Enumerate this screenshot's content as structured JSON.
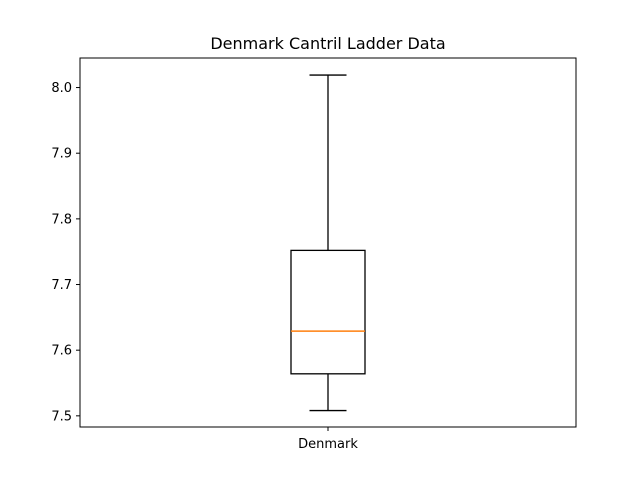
{
  "chart_data": {
    "type": "box",
    "title": "Denmark Cantril Ladder Data",
    "xlabel": "",
    "ylabel": "",
    "categories": [
      "Denmark"
    ],
    "boxes": [
      {
        "category": "Denmark",
        "whisker_low": 7.508,
        "q1": 7.564,
        "median": 7.629,
        "q3": 7.752,
        "whisker_high": 8.019
      }
    ],
    "ylim": [
      7.483,
      8.045
    ],
    "yticks": [
      7.5,
      7.6,
      7.7,
      7.8,
      7.9,
      8.0
    ],
    "ytick_labels": [
      "7.5",
      "7.6",
      "7.7",
      "7.8",
      "7.9",
      "8.0"
    ],
    "grid": false,
    "colors": {
      "box": "#000000",
      "median": "#ff7f0e",
      "whisker": "#000000",
      "axes": "#000000"
    }
  }
}
